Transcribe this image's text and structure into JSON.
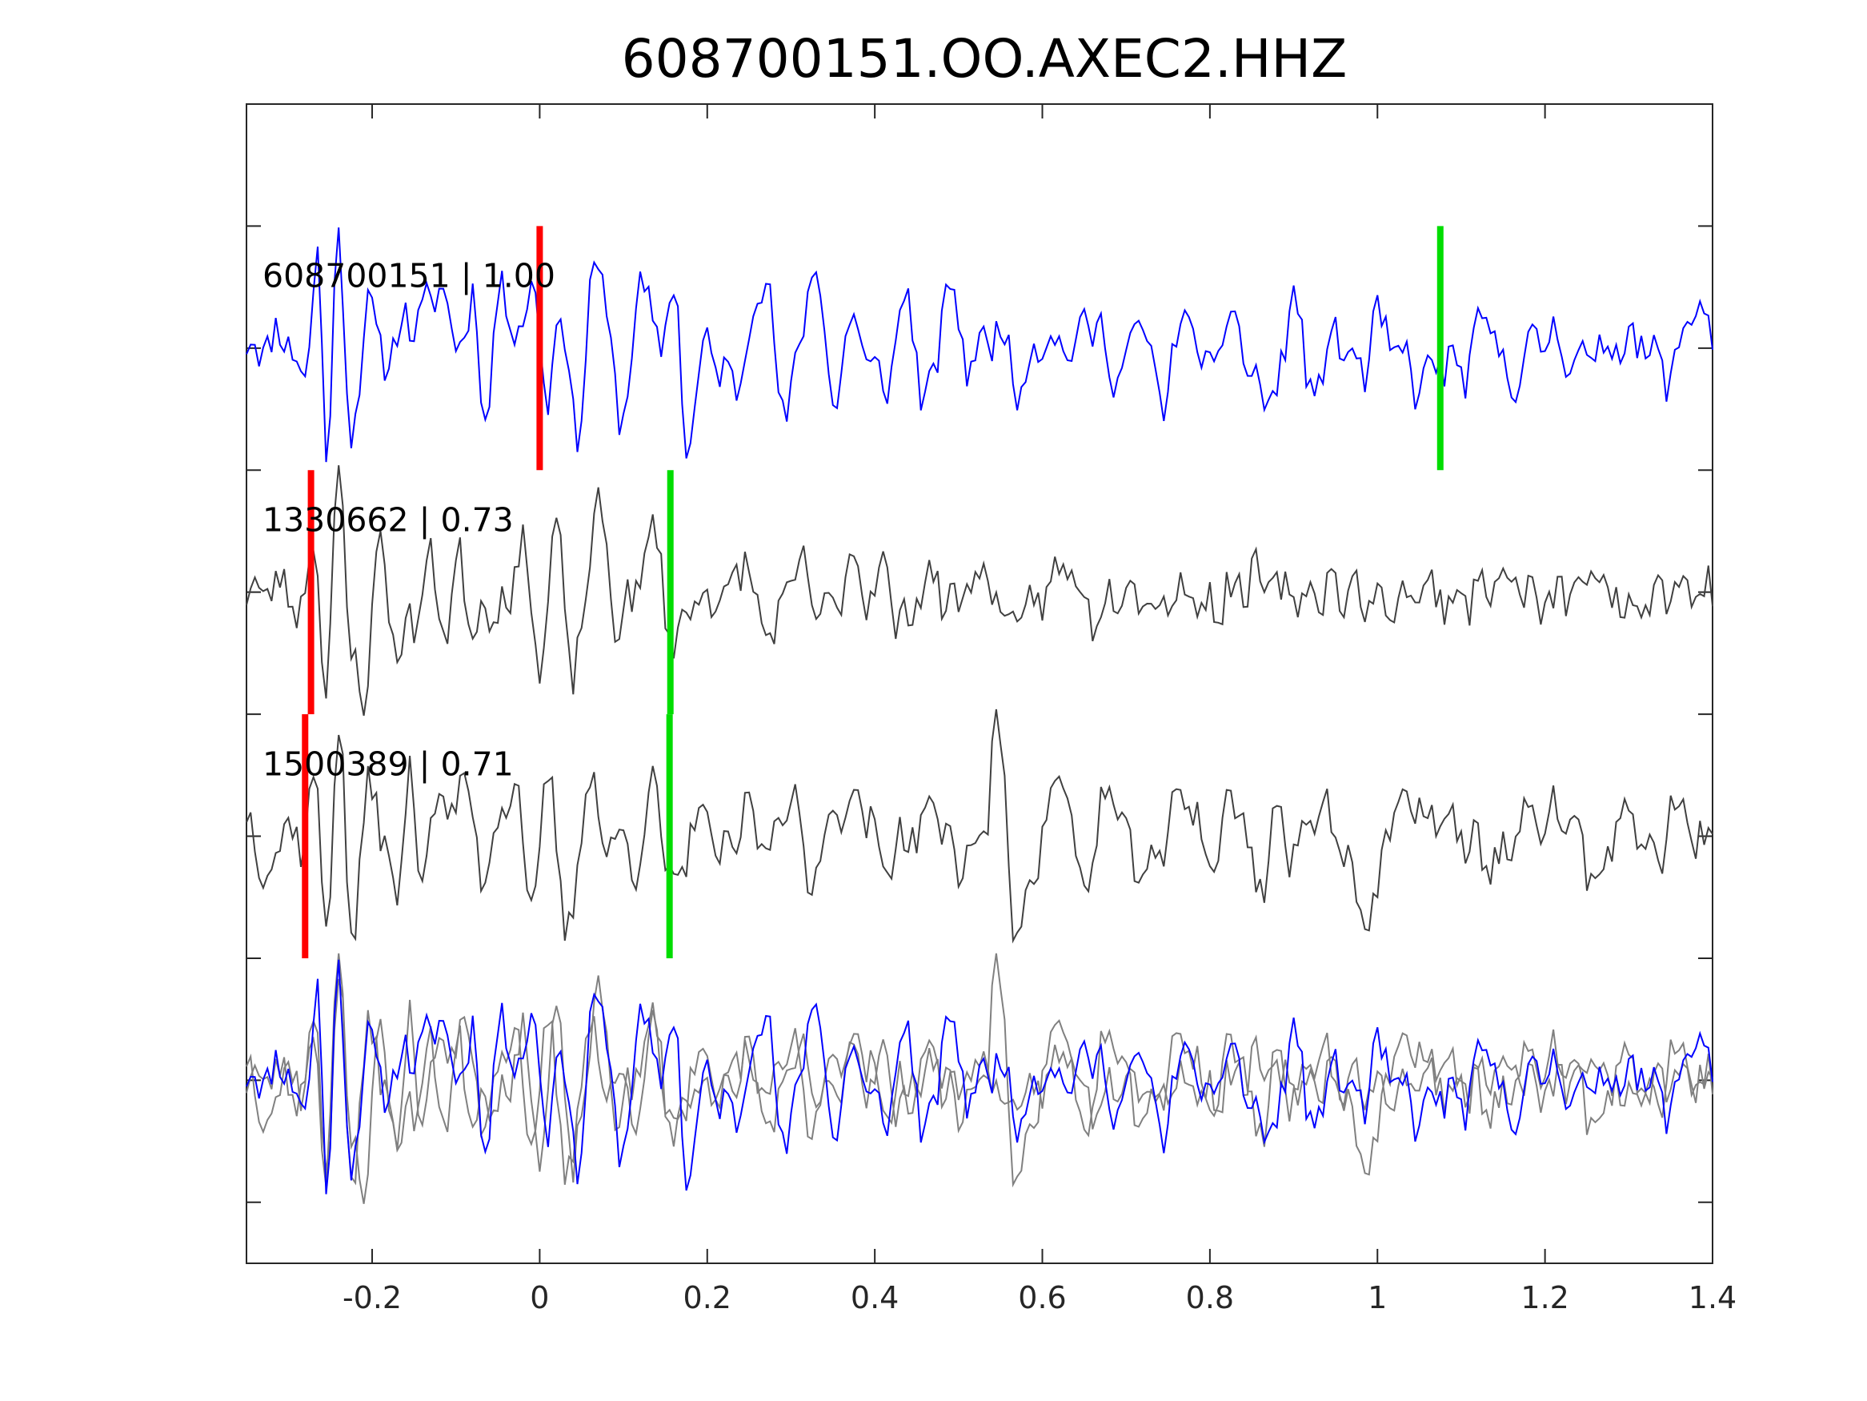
{
  "chart_data": {
    "type": "line",
    "title": "608700151.OO.AXEC2.HHZ",
    "xlabel": "",
    "ylabel": "",
    "xlim": [
      -0.35,
      1.4
    ],
    "ylim": [
      0.5,
      5.25
    ],
    "x_ticks": [
      -0.2,
      0,
      0.2,
      0.4,
      0.6,
      0.8,
      1,
      1.2,
      1.4
    ],
    "x_tick_labels": [
      "-0.2",
      "0",
      "0.2",
      "0.4",
      "0.6",
      "0.8",
      "1",
      "1.2",
      "1.4"
    ],
    "y_ticks": [
      0.75,
      1.25,
      1.75,
      2.25,
      2.75,
      3.25,
      3.75,
      4.25,
      4.75
    ],
    "y_tick_labels": [],
    "grid": false,
    "colors": {
      "primary_trace": "#0000ff",
      "correlated_trace": "#404040",
      "overlay_trace": "#808080",
      "p_pick": "#ff0000",
      "s_pick": "#00dd00",
      "axes": "#262626"
    },
    "traces": [
      {
        "label": "608700151 | 1.00",
        "offset": 4.25,
        "color": "#0000ff",
        "p_pick": 0.0,
        "s_pick": 1.075,
        "amplitude": 0.5,
        "seed": 11,
        "keypoints": [
          [
            -0.35,
            0.0
          ],
          [
            -0.3,
            0.05
          ],
          [
            -0.28,
            -0.15
          ],
          [
            -0.265,
            0.45
          ],
          [
            -0.255,
            -0.5
          ],
          [
            -0.24,
            0.5
          ],
          [
            -0.225,
            -0.4
          ],
          [
            -0.205,
            0.2
          ],
          [
            -0.19,
            -0.05
          ],
          [
            -0.16,
            0.1
          ],
          [
            -0.13,
            0.15
          ],
          [
            -0.12,
            0.3
          ],
          [
            -0.1,
            0.0
          ],
          [
            -0.08,
            0.2
          ],
          [
            -0.065,
            -0.3
          ],
          [
            -0.05,
            0.2
          ],
          [
            -0.035,
            0.15
          ],
          [
            -0.02,
            0.1
          ],
          [
            -0.005,
            0.25
          ],
          [
            0.01,
            -0.25
          ],
          [
            0.025,
            0.2
          ],
          [
            0.045,
            -0.4
          ],
          [
            0.065,
            0.4
          ],
          [
            0.08,
            0.1
          ],
          [
            0.1,
            -0.32
          ],
          [
            0.12,
            0.3
          ],
          [
            0.14,
            0.0
          ],
          [
            0.16,
            0.25
          ],
          [
            0.175,
            -0.38
          ],
          [
            0.2,
            0.0
          ],
          [
            0.23,
            -0.15
          ],
          [
            0.27,
            0.3
          ],
          [
            0.29,
            -0.3
          ],
          [
            0.31,
            0.0
          ],
          [
            0.33,
            0.38
          ],
          [
            0.35,
            -0.25
          ],
          [
            0.37,
            0.1
          ],
          [
            0.41,
            -0.15
          ],
          [
            0.44,
            0.2
          ],
          [
            0.46,
            -0.25
          ],
          [
            0.49,
            0.25
          ],
          [
            0.51,
            -0.05
          ],
          [
            0.55,
            0.08
          ],
          [
            0.57,
            -0.15
          ],
          [
            0.6,
            0.05
          ],
          [
            0.63,
            0.0
          ],
          [
            0.66,
            0.1
          ],
          [
            0.69,
            -0.1
          ],
          [
            0.72,
            0.1
          ],
          [
            0.74,
            -0.22
          ],
          [
            0.77,
            0.12
          ],
          [
            0.8,
            -0.1
          ],
          [
            0.83,
            0.15
          ],
          [
            0.85,
            -0.15
          ],
          [
            0.88,
            -0.2
          ],
          [
            0.9,
            0.25
          ],
          [
            0.92,
            -0.2
          ],
          [
            0.95,
            0.05
          ],
          [
            0.98,
            -0.1
          ],
          [
            1.0,
            0.1
          ],
          [
            1.03,
            -0.05
          ],
          [
            1.05,
            -0.15
          ],
          [
            1.075,
            -0.05
          ],
          [
            1.1,
            -0.1
          ],
          [
            1.13,
            0.1
          ],
          [
            1.16,
            -0.12
          ],
          [
            1.2,
            0.05
          ],
          [
            1.25,
            -0.05
          ],
          [
            1.3,
            0.05
          ],
          [
            1.35,
            -0.1
          ],
          [
            1.38,
            0.2
          ],
          [
            1.4,
            0.05
          ]
        ]
      },
      {
        "label": "1330662 | 0.73",
        "offset": 3.25,
        "color": "#404040",
        "p_pick": -0.273,
        "s_pick": 0.156,
        "amplitude": 0.5,
        "seed": 23,
        "keypoints": [
          [
            -0.35,
            0.0
          ],
          [
            -0.3,
            0.02
          ],
          [
            -0.285,
            -0.1
          ],
          [
            -0.27,
            0.25
          ],
          [
            -0.255,
            -0.4
          ],
          [
            -0.24,
            0.55
          ],
          [
            -0.225,
            -0.3
          ],
          [
            -0.21,
            -0.4
          ],
          [
            -0.19,
            0.2
          ],
          [
            -0.17,
            -0.25
          ],
          [
            -0.15,
            -0.1
          ],
          [
            -0.13,
            0.1
          ],
          [
            -0.11,
            -0.15
          ],
          [
            -0.095,
            0.15
          ],
          [
            -0.08,
            -0.15
          ],
          [
            -0.06,
            -0.05
          ],
          [
            -0.04,
            -0.05
          ],
          [
            -0.02,
            0.2
          ],
          [
            0.0,
            -0.3
          ],
          [
            0.02,
            0.25
          ],
          [
            0.04,
            -0.35
          ],
          [
            0.07,
            0.35
          ],
          [
            0.09,
            -0.1
          ],
          [
            0.11,
            -0.05
          ],
          [
            0.135,
            0.25
          ],
          [
            0.16,
            -0.2
          ],
          [
            0.19,
            0.0
          ],
          [
            0.22,
            -0.05
          ],
          [
            0.245,
            0.15
          ],
          [
            0.26,
            -0.1
          ],
          [
            0.28,
            -0.15
          ],
          [
            0.31,
            0.1
          ],
          [
            0.33,
            -0.05
          ],
          [
            0.35,
            -0.1
          ],
          [
            0.37,
            0.15
          ],
          [
            0.39,
            0.0
          ],
          [
            0.41,
            0.1
          ],
          [
            0.43,
            -0.15
          ],
          [
            0.46,
            0.05
          ],
          [
            0.5,
            -0.05
          ],
          [
            0.52,
            0.1
          ],
          [
            0.54,
            0.0
          ],
          [
            0.57,
            -0.15
          ],
          [
            0.6,
            0.0
          ],
          [
            0.63,
            0.1
          ],
          [
            0.66,
            -0.08
          ],
          [
            0.7,
            0.05
          ],
          [
            0.73,
            -0.05
          ],
          [
            0.76,
            0.0
          ],
          [
            0.8,
            -0.05
          ],
          [
            0.85,
            0.05
          ],
          [
            0.9,
            -0.02
          ],
          [
            0.95,
            0.02
          ],
          [
            1.0,
            -0.05
          ],
          [
            1.05,
            0.0
          ],
          [
            1.1,
            -0.02
          ],
          [
            1.15,
            0.05
          ],
          [
            1.2,
            -0.05
          ],
          [
            1.25,
            0.05
          ],
          [
            1.3,
            -0.03
          ],
          [
            1.35,
            0.02
          ],
          [
            1.4,
            0.0
          ]
        ]
      },
      {
        "label": "1500389 | 0.71",
        "offset": 2.25,
        "color": "#404040",
        "p_pick": -0.28,
        "s_pick": 0.155,
        "amplitude": 0.5,
        "seed": 37,
        "keypoints": [
          [
            -0.35,
            0.05
          ],
          [
            -0.32,
            -0.15
          ],
          [
            -0.3,
            0.1
          ],
          [
            -0.285,
            -0.1
          ],
          [
            -0.27,
            0.3
          ],
          [
            -0.255,
            -0.4
          ],
          [
            -0.24,
            0.5
          ],
          [
            -0.225,
            -0.45
          ],
          [
            -0.205,
            0.2
          ],
          [
            -0.185,
            0.0
          ],
          [
            -0.17,
            -0.3
          ],
          [
            -0.155,
            0.3
          ],
          [
            -0.14,
            -0.2
          ],
          [
            -0.125,
            0.2
          ],
          [
            -0.11,
            0.05
          ],
          [
            -0.09,
            0.25
          ],
          [
            -0.07,
            -0.15
          ],
          [
            -0.05,
            0.05
          ],
          [
            -0.03,
            0.25
          ],
          [
            -0.01,
            -0.3
          ],
          [
            0.01,
            0.2
          ],
          [
            0.035,
            -0.4
          ],
          [
            0.06,
            0.3
          ],
          [
            0.075,
            -0.05
          ],
          [
            0.09,
            0.0
          ],
          [
            0.115,
            -0.1
          ],
          [
            0.135,
            0.2
          ],
          [
            0.16,
            -0.25
          ],
          [
            0.19,
            0.1
          ],
          [
            0.22,
            -0.1
          ],
          [
            0.25,
            0.1
          ],
          [
            0.27,
            -0.05
          ],
          [
            0.3,
            0.2
          ],
          [
            0.32,
            -0.2
          ],
          [
            0.35,
            0.1
          ],
          [
            0.38,
            0.15
          ],
          [
            0.41,
            -0.1
          ],
          [
            0.44,
            0.0
          ],
          [
            0.47,
            0.1
          ],
          [
            0.5,
            -0.1
          ],
          [
            0.53,
            0.0
          ],
          [
            0.545,
            0.45
          ],
          [
            0.57,
            -0.4
          ],
          [
            0.59,
            -0.1
          ],
          [
            0.62,
            0.25
          ],
          [
            0.65,
            -0.2
          ],
          [
            0.68,
            0.2
          ],
          [
            0.7,
            -0.05
          ],
          [
            0.73,
            -0.15
          ],
          [
            0.77,
            0.2
          ],
          [
            0.8,
            -0.1
          ],
          [
            0.83,
            0.15
          ],
          [
            0.86,
            -0.2
          ],
          [
            0.88,
            0.1
          ],
          [
            0.9,
            -0.1
          ],
          [
            0.93,
            0.15
          ],
          [
            0.96,
            -0.05
          ],
          [
            0.99,
            -0.35
          ],
          [
            1.02,
            0.1
          ],
          [
            1.06,
            0.1
          ],
          [
            1.1,
            0.0
          ],
          [
            1.14,
            -0.1
          ],
          [
            1.18,
            0.05
          ],
          [
            1.22,
            0.1
          ],
          [
            1.26,
            -0.15
          ],
          [
            1.3,
            0.1
          ],
          [
            1.33,
            -0.1
          ],
          [
            1.36,
            0.15
          ],
          [
            1.38,
            -0.05
          ],
          [
            1.4,
            0.0
          ]
        ]
      }
    ],
    "overlay": {
      "offset": 1.25,
      "traces": [
        0,
        1,
        2
      ]
    }
  }
}
